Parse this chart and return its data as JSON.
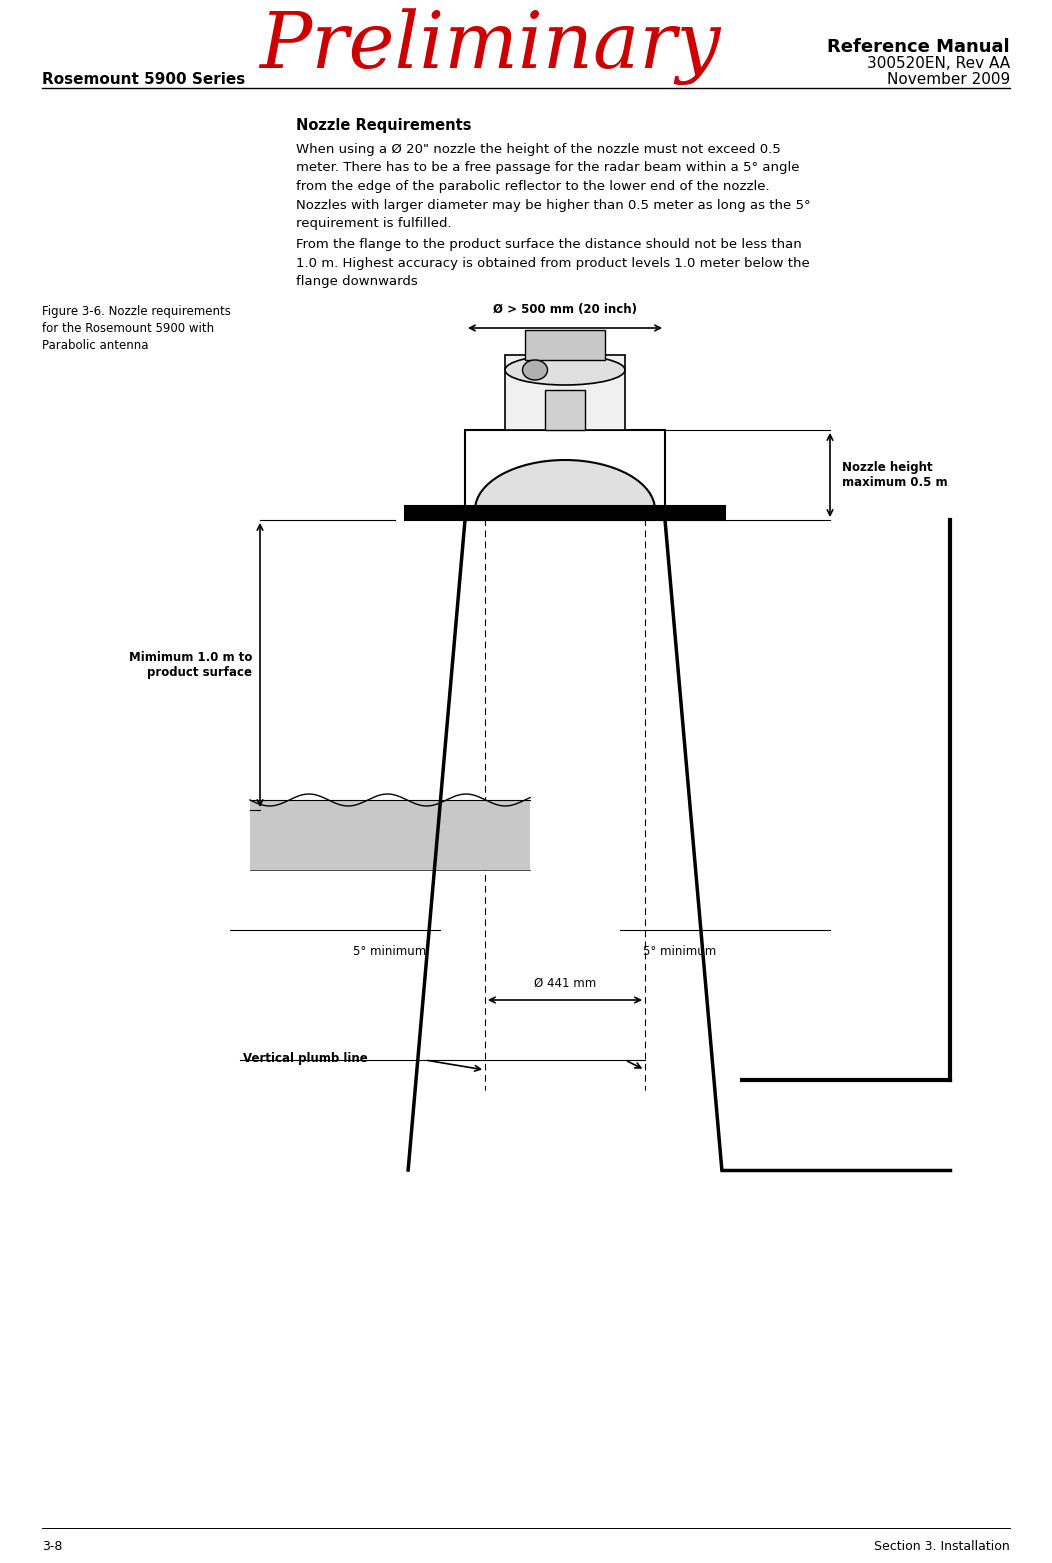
{
  "page_width": 10.52,
  "page_height": 15.63,
  "bg_color": "#ffffff",
  "preliminary_text": "Preliminary",
  "preliminary_color": "#cc0000",
  "preliminary_font_size": 56,
  "ref_manual_text": "Reference Manual",
  "ref_manual_font_size": 13,
  "doc_number_text": "300520EN, Rev AA",
  "doc_number_font_size": 11,
  "date_text": "November 2009",
  "date_font_size": 11,
  "series_text": "Rosemount 5900 Series",
  "series_font_size": 11,
  "section_title": "Nozzle Requirements",
  "section_title_font_size": 10.5,
  "body_text_1": "When using a Ø 20\" nozzle the height of the nozzle must not exceed 0.5\nmeter. There has to be a free passage for the radar beam within a 5° angle\nfrom the edge of the parabolic reflector to the lower end of the nozzle.\nNozzles with larger diameter may be higher than 0.5 meter as long as the 5°\nrequirement is fulfilled.",
  "body_text_2": "From the flange to the product surface the distance should not be less than\n1.0 m. Highest accuracy is obtained from product levels 1.0 meter below the\nflange downwards",
  "body_font_size": 9.5,
  "figure_caption": "Figure 3-6. Nozzle requirements\nfor the Rosemount 5900 with\nParabolic antenna",
  "figure_caption_font_size": 8.5,
  "page_num_text": "3-8",
  "section_ref_text": "Section 3. Installation",
  "footer_font_size": 9,
  "label_diameter_top": "Ø > 500 mm (20 inch)",
  "label_nozzle_height": "Nozzle height\nmaximum 0.5 m",
  "label_min_distance": "Mimimum 1.0 m to\nproduct surface",
  "label_5deg_left": "5° minimum",
  "label_5deg_right": "5° minimum",
  "label_diameter_bottom": "Ø 441 mm",
  "label_plumb": "Vertical plumb line",
  "diagram_font_size": 8.5
}
